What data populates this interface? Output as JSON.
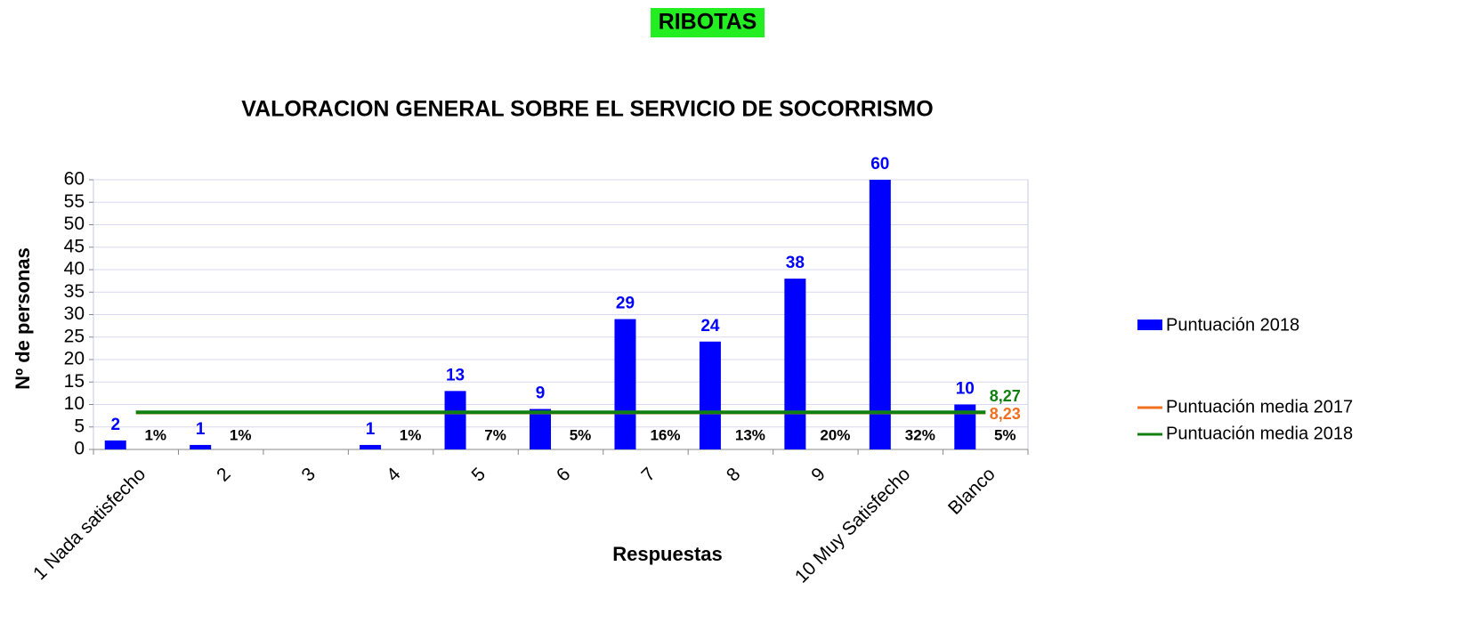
{
  "chart_data": {
    "type": "bar",
    "supertitle": "RIBOTAS",
    "title": "VALORACION GENERAL SOBRE EL SERVICIO DE SOCORRISMO",
    "x_label": "Respuestas",
    "y_label": "Nº de personas",
    "categories": [
      "1 Nada satisfecho",
      "2",
      "3",
      "4",
      "5",
      "6",
      "7",
      "8",
      "9",
      "10 Muy Satisfecho",
      "Blanco"
    ],
    "series": [
      {
        "name": "Puntuación 2018",
        "color": "#0000ff",
        "values": [
          2,
          1,
          null,
          1,
          13,
          9,
          29,
          24,
          38,
          60,
          10
        ]
      }
    ],
    "percentages": [
      1,
      1,
      null,
      1,
      7,
      5,
      16,
      13,
      20,
      32,
      5
    ],
    "percentage_labels": [
      "1%",
      "1%",
      null,
      "1%",
      "7%",
      "5%",
      "16%",
      "13%",
      "20%",
      "32%",
      "5%"
    ],
    "mean_lines": [
      {
        "name": "Puntuación media 2017",
        "color": "#f07020",
        "value": 8.23,
        "value_label": "8,23"
      },
      {
        "name": "Puntuación media 2018",
        "color": "#108010",
        "value": 8.27,
        "value_label": "8,27"
      }
    ],
    "ylim": [
      0,
      60
    ],
    "yticks": [
      0,
      5,
      10,
      15,
      20,
      25,
      30,
      35,
      40,
      45,
      50,
      55,
      60
    ],
    "grid": true
  }
}
